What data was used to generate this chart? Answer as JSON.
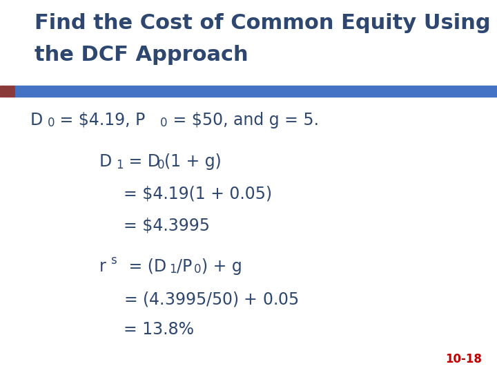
{
  "title_line1": "Find the Cost of Common Equity Using",
  "title_line2": "the DCF Approach",
  "title_color": "#2E4770",
  "title_fontsize": 22,
  "header_bar_color": "#4472C4",
  "header_bar_left_color": "#8B3A3A",
  "subtitle_color": "#2E4770",
  "subtitle_fontsize": 17,
  "body_color": "#2E4770",
  "body_fontsize": 17,
  "slide_number": "10-18",
  "slide_number_color": "#C00000",
  "slide_number_fontsize": 12,
  "background_color": "#FFFFFF"
}
